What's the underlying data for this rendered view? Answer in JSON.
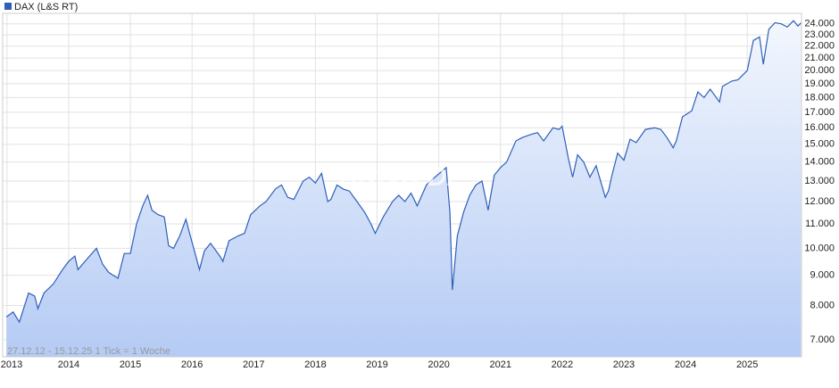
{
  "chart_data": {
    "type": "area",
    "note": "27.12.12 - 15.12.25   1 Tick = 1 Woche",
    "watermark": "ARIVA.DE",
    "log_y": true,
    "grid": true,
    "xlim": [
      2012.93,
      2025.88
    ],
    "xticks": [
      2013,
      2014,
      2015,
      2016,
      2017,
      2018,
      2019,
      2020,
      2021,
      2022,
      2023,
      2024,
      2025
    ],
    "ylim": [
      6550,
      25000
    ],
    "yticks": [
      {
        "value": 7000,
        "label": "7.000"
      },
      {
        "value": 8000,
        "label": "8.000"
      },
      {
        "value": 9000,
        "label": "9.000"
      },
      {
        "value": 10000,
        "label": "10.000"
      },
      {
        "value": 11000,
        "label": "11.000"
      },
      {
        "value": 12000,
        "label": "12.000"
      },
      {
        "value": 13000,
        "label": "13.000"
      },
      {
        "value": 14000,
        "label": "14.000"
      },
      {
        "value": 15000,
        "label": "15.000"
      },
      {
        "value": 16000,
        "label": "16.000"
      },
      {
        "value": 17000,
        "label": "17.000"
      },
      {
        "value": 18000,
        "label": "18.000"
      },
      {
        "value": 19000,
        "label": "19.000"
      },
      {
        "value": 20000,
        "label": "20.000"
      },
      {
        "value": 21000,
        "label": "21.000"
      },
      {
        "value": 22000,
        "label": "22.000"
      },
      {
        "value": 23000,
        "label": "23.000"
      },
      {
        "value": 24000,
        "label": "24.000"
      }
    ],
    "x": [
      2012.99,
      2013.1,
      2013.2,
      2013.35,
      2013.45,
      2013.5,
      2013.6,
      2013.75,
      2013.9,
      2014.0,
      2014.1,
      2014.15,
      2014.3,
      2014.45,
      2014.55,
      2014.65,
      2014.8,
      2014.9,
      2015.0,
      2015.1,
      2015.2,
      2015.28,
      2015.35,
      2015.45,
      2015.55,
      2015.62,
      2015.7,
      2015.8,
      2015.9,
      2015.95,
      2016.05,
      2016.12,
      2016.2,
      2016.3,
      2016.45,
      2016.5,
      2016.6,
      2016.75,
      2016.85,
      2016.95,
      2017.1,
      2017.2,
      2017.35,
      2017.45,
      2017.55,
      2017.65,
      2017.8,
      2017.9,
      2018.0,
      2018.1,
      2018.2,
      2018.25,
      2018.35,
      2018.45,
      2018.55,
      2018.65,
      2018.8,
      2018.9,
      2018.97,
      2019.1,
      2019.25,
      2019.35,
      2019.45,
      2019.55,
      2019.65,
      2019.8,
      2019.9,
      2020.05,
      2020.12,
      2020.18,
      2020.22,
      2020.3,
      2020.4,
      2020.5,
      2020.6,
      2020.7,
      2020.8,
      2020.9,
      2021.0,
      2021.1,
      2021.25,
      2021.35,
      2021.5,
      2021.6,
      2021.7,
      2021.85,
      2021.95,
      2022.0,
      2022.1,
      2022.17,
      2022.25,
      2022.35,
      2022.45,
      2022.55,
      2022.7,
      2022.75,
      2022.8,
      2022.9,
      2023.0,
      2023.1,
      2023.2,
      2023.35,
      2023.5,
      2023.6,
      2023.7,
      2023.8,
      2023.85,
      2023.95,
      2024.1,
      2024.2,
      2024.3,
      2024.4,
      2024.55,
      2024.6,
      2024.75,
      2024.85,
      2025.0,
      2025.1,
      2025.2,
      2025.26,
      2025.35,
      2025.45,
      2025.55,
      2025.65,
      2025.75,
      2025.82,
      2025.86,
      2025.87
    ],
    "series": [
      {
        "name": "DAX (L&S RT)",
        "color": "#2e5fb8",
        "values": [
          7650,
          7800,
          7500,
          8400,
          8300,
          7900,
          8400,
          8700,
          9200,
          9500,
          9700,
          9200,
          9600,
          10000,
          9400,
          9100,
          8900,
          9800,
          9800,
          11000,
          11800,
          12300,
          11600,
          11400,
          11300,
          10100,
          10000,
          10500,
          11200,
          10700,
          9800,
          9200,
          9900,
          10200,
          9700,
          9500,
          10300,
          10500,
          10600,
          11400,
          11800,
          12000,
          12600,
          12800,
          12200,
          12100,
          13000,
          13200,
          12900,
          13400,
          12000,
          12100,
          12800,
          12600,
          12500,
          12100,
          11500,
          11000,
          10600,
          11300,
          12000,
          12300,
          12000,
          12400,
          11800,
          12800,
          13100,
          13500,
          13700,
          11500,
          8500,
          10500,
          11500,
          12300,
          12800,
          13000,
          11600,
          13300,
          13700,
          14000,
          15200,
          15400,
          15600,
          15700,
          15200,
          16000,
          15900,
          16100,
          14200,
          13200,
          14400,
          14000,
          13200,
          13800,
          12200,
          12500,
          13200,
          14500,
          14100,
          15300,
          15100,
          15900,
          16000,
          15900,
          15400,
          14800,
          15200,
          16700,
          17100,
          18400,
          18000,
          18600,
          17700,
          18800,
          19200,
          19300,
          20000,
          22500,
          22800,
          20500,
          23500,
          24100,
          24000,
          23700,
          24300,
          23800,
          24000,
          24100
        ]
      }
    ]
  }
}
